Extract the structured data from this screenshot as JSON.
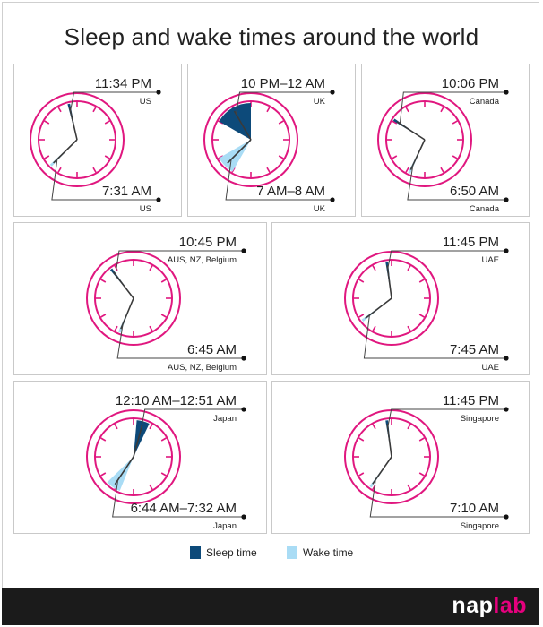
{
  "title": "Sleep and wake times around the world",
  "colors": {
    "sleep": "#0d4a7a",
    "wake": "#a9dcf5",
    "ring": "#e0177f",
    "tick": "#e0177f",
    "hand": "#3a3a3a"
  },
  "legend": {
    "sleep_label": "Sleep time",
    "wake_label": "Wake time"
  },
  "logo": {
    "part1": "nap",
    "part2": "lab"
  },
  "chart_data": {
    "type": "clock-diagram",
    "panels": [
      {
        "country_top": "US",
        "sleep_label": "11:34 PM",
        "wake_label": "7:31 AM",
        "sleep_start": 23.5667,
        "sleep_end": 23.5667,
        "wake_start": 7.5167,
        "wake_end": 7.5167
      },
      {
        "country_top": "UK",
        "sleep_label": "10 PM–12 AM",
        "wake_label": "7 AM–8 AM",
        "sleep_start": 22.0,
        "sleep_end": 24.0,
        "wake_start": 7.0,
        "wake_end": 8.0
      },
      {
        "country_top": "Canada",
        "sleep_label": "10:06 PM",
        "wake_label": "6:50 AM",
        "sleep_start": 22.1,
        "sleep_end": 22.1,
        "wake_start": 6.8333,
        "wake_end": 6.8333
      },
      {
        "country_top": "AUS, NZ, Belgium",
        "sleep_label": "10:45 PM",
        "wake_label": "6:45 AM",
        "sleep_start": 22.75,
        "sleep_end": 22.75,
        "wake_start": 6.75,
        "wake_end": 6.75
      },
      {
        "country_top": "UAE",
        "sleep_label": "11:45 PM",
        "wake_label": "7:45 AM",
        "sleep_start": 23.75,
        "sleep_end": 23.75,
        "wake_start": 7.75,
        "wake_end": 7.75
      },
      {
        "country_top": "Japan",
        "sleep_label": "12:10 AM–12:51 AM",
        "wake_label": "6:44 AM–7:32 AM",
        "sleep_start": 0.1667,
        "sleep_end": 0.85,
        "wake_start": 6.7333,
        "wake_end": 7.5333
      },
      {
        "country_top": "Singapore",
        "sleep_label": "11:45 PM",
        "wake_label": "7:10 AM",
        "sleep_start": 23.75,
        "sleep_end": 23.75,
        "wake_start": 7.1667,
        "wake_end": 7.1667
      }
    ]
  }
}
